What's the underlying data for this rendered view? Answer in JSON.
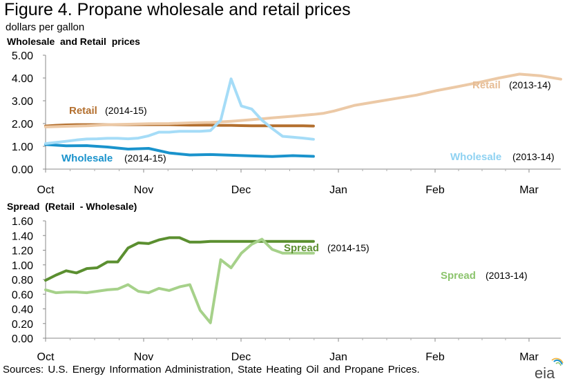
{
  "figure": {
    "title": "Figure 4. Propane wholesale and retail prices",
    "unit": "dollars per gallon",
    "source": "Sources: U.S. Energy Information Administration, State Heating Oil and Propane Prices.",
    "logo_text": "eia"
  },
  "chart_data": [
    {
      "type": "line",
      "title": "Wholesale  and Retail  prices",
      "ylim": [
        0,
        5
      ],
      "yticks": [
        "0.00",
        "1.00",
        "2.00",
        "3.00",
        "4.00",
        "5.00"
      ],
      "x_tick_labels": [
        "Oct",
        "Nov",
        "Dec",
        "Jan",
        "Feb",
        "Mar"
      ],
      "x_range_weeks": [
        0,
        26
      ],
      "grid": false,
      "series": [
        {
          "name": "Retail",
          "season": "(2014-15)",
          "color": "#b36f2e",
          "width": 4,
          "x": [
            0,
            1,
            2,
            3,
            4,
            5,
            6,
            7,
            8,
            9,
            10,
            11,
            12,
            13,
            14,
            15,
            16,
            17,
            18,
            19,
            20,
            21,
            22,
            23,
            24,
            25,
            26
          ],
          "values": [
            1.89,
            1.92,
            1.94,
            1.95,
            1.95,
            1.95,
            1.95,
            1.95,
            1.95,
            1.95,
            1.95,
            1.95,
            1.95,
            1.94,
            1.93,
            1.93,
            1.93,
            1.92,
            1.92,
            1.91,
            1.9,
            1.9,
            1.9,
            1.9,
            1.9,
            1.9,
            1.89
          ]
        },
        {
          "name": "Wholesale",
          "season": "(2014-15)",
          "color": "#1a93cc",
          "width": 4,
          "x": [
            0,
            2,
            4,
            6,
            8,
            10,
            12,
            14,
            16,
            18,
            20,
            22,
            24,
            26
          ],
          "values": [
            1.08,
            1.02,
            1.03,
            0.97,
            0.88,
            0.91,
            0.71,
            0.62,
            0.64,
            0.61,
            0.58,
            0.55,
            0.59,
            0.56
          ]
        },
        {
          "name": "Retail",
          "season": "(2013-14)",
          "color": "#ecc9a6",
          "width": 4,
          "x": [
            0,
            2,
            4,
            6,
            8,
            10,
            12,
            14,
            16,
            18,
            20,
            22,
            24,
            26,
            27,
            28,
            30,
            32,
            34,
            36,
            38,
            40,
            42,
            44,
            46,
            48,
            50
          ],
          "values": [
            1.85,
            1.88,
            1.9,
            1.95,
            1.97,
            1.99,
            2.0,
            2.03,
            2.05,
            2.1,
            2.17,
            2.25,
            2.32,
            2.4,
            2.45,
            2.55,
            2.8,
            2.95,
            3.1,
            3.25,
            3.45,
            3.62,
            3.8,
            4.0,
            4.17,
            4.1,
            3.95
          ]
        },
        {
          "name": "Wholesale",
          "season": "(2013-14)",
          "color": "#a5dcf7",
          "width": 4,
          "x": [
            0,
            1,
            2,
            3,
            4,
            5,
            6,
            7,
            8,
            9,
            10,
            11,
            12,
            13,
            14,
            15,
            16,
            17,
            18,
            19,
            20,
            21,
            22,
            23,
            24,
            25,
            26
          ],
          "values": [
            1.12,
            1.17,
            1.22,
            1.28,
            1.32,
            1.33,
            1.35,
            1.35,
            1.33,
            1.36,
            1.46,
            1.62,
            1.62,
            1.66,
            1.66,
            1.66,
            1.69,
            2.15,
            3.96,
            2.77,
            2.64,
            2.15,
            1.78,
            1.44,
            1.4,
            1.36,
            1.31
          ]
        }
      ]
    },
    {
      "type": "line",
      "title": "Spread  (Retail  - Wholesale)",
      "ylim": [
        0,
        1.6
      ],
      "yticks": [
        "0.00",
        "0.20",
        "0.40",
        "0.60",
        "0.80",
        "1.00",
        "1.20",
        "1.40",
        "1.60"
      ],
      "x_tick_labels": [
        "Oct",
        "Nov",
        "Dec",
        "Jan",
        "Feb",
        "Mar"
      ],
      "x_range_weeks": [
        0,
        26
      ],
      "grid": false,
      "series": [
        {
          "name": "Spread",
          "season": "(2014-15)",
          "color": "#5b8f30",
          "width": 4,
          "x": [
            0,
            1,
            2,
            3,
            4,
            5,
            6,
            7,
            8,
            9,
            10,
            11,
            12,
            13,
            14,
            15,
            16,
            17,
            18,
            19,
            20,
            21,
            22,
            23,
            24,
            25,
            26
          ],
          "values": [
            0.79,
            0.86,
            0.92,
            0.89,
            0.95,
            0.96,
            1.04,
            1.04,
            1.23,
            1.3,
            1.29,
            1.34,
            1.37,
            1.37,
            1.31,
            1.31,
            1.32,
            1.32,
            1.32,
            1.32,
            1.32,
            1.32,
            1.32,
            1.32,
            1.32,
            1.32,
            1.32
          ]
        },
        {
          "name": "Spread",
          "season": "(2013-14)",
          "color": "#a6d18a",
          "width": 4,
          "x": [
            0,
            1,
            2,
            3,
            4,
            5,
            6,
            7,
            8,
            9,
            10,
            11,
            12,
            13,
            14,
            15,
            16,
            17,
            18,
            19,
            20,
            21,
            22,
            23,
            24,
            25,
            26
          ],
          "values": [
            0.66,
            0.62,
            0.63,
            0.63,
            0.62,
            0.64,
            0.66,
            0.67,
            0.73,
            0.64,
            0.62,
            0.68,
            0.65,
            0.7,
            0.73,
            0.38,
            0.21,
            1.07,
            0.96,
            1.16,
            1.28,
            1.35,
            1.21,
            1.16,
            1.16,
            1.16,
            1.16
          ]
        }
      ]
    }
  ]
}
